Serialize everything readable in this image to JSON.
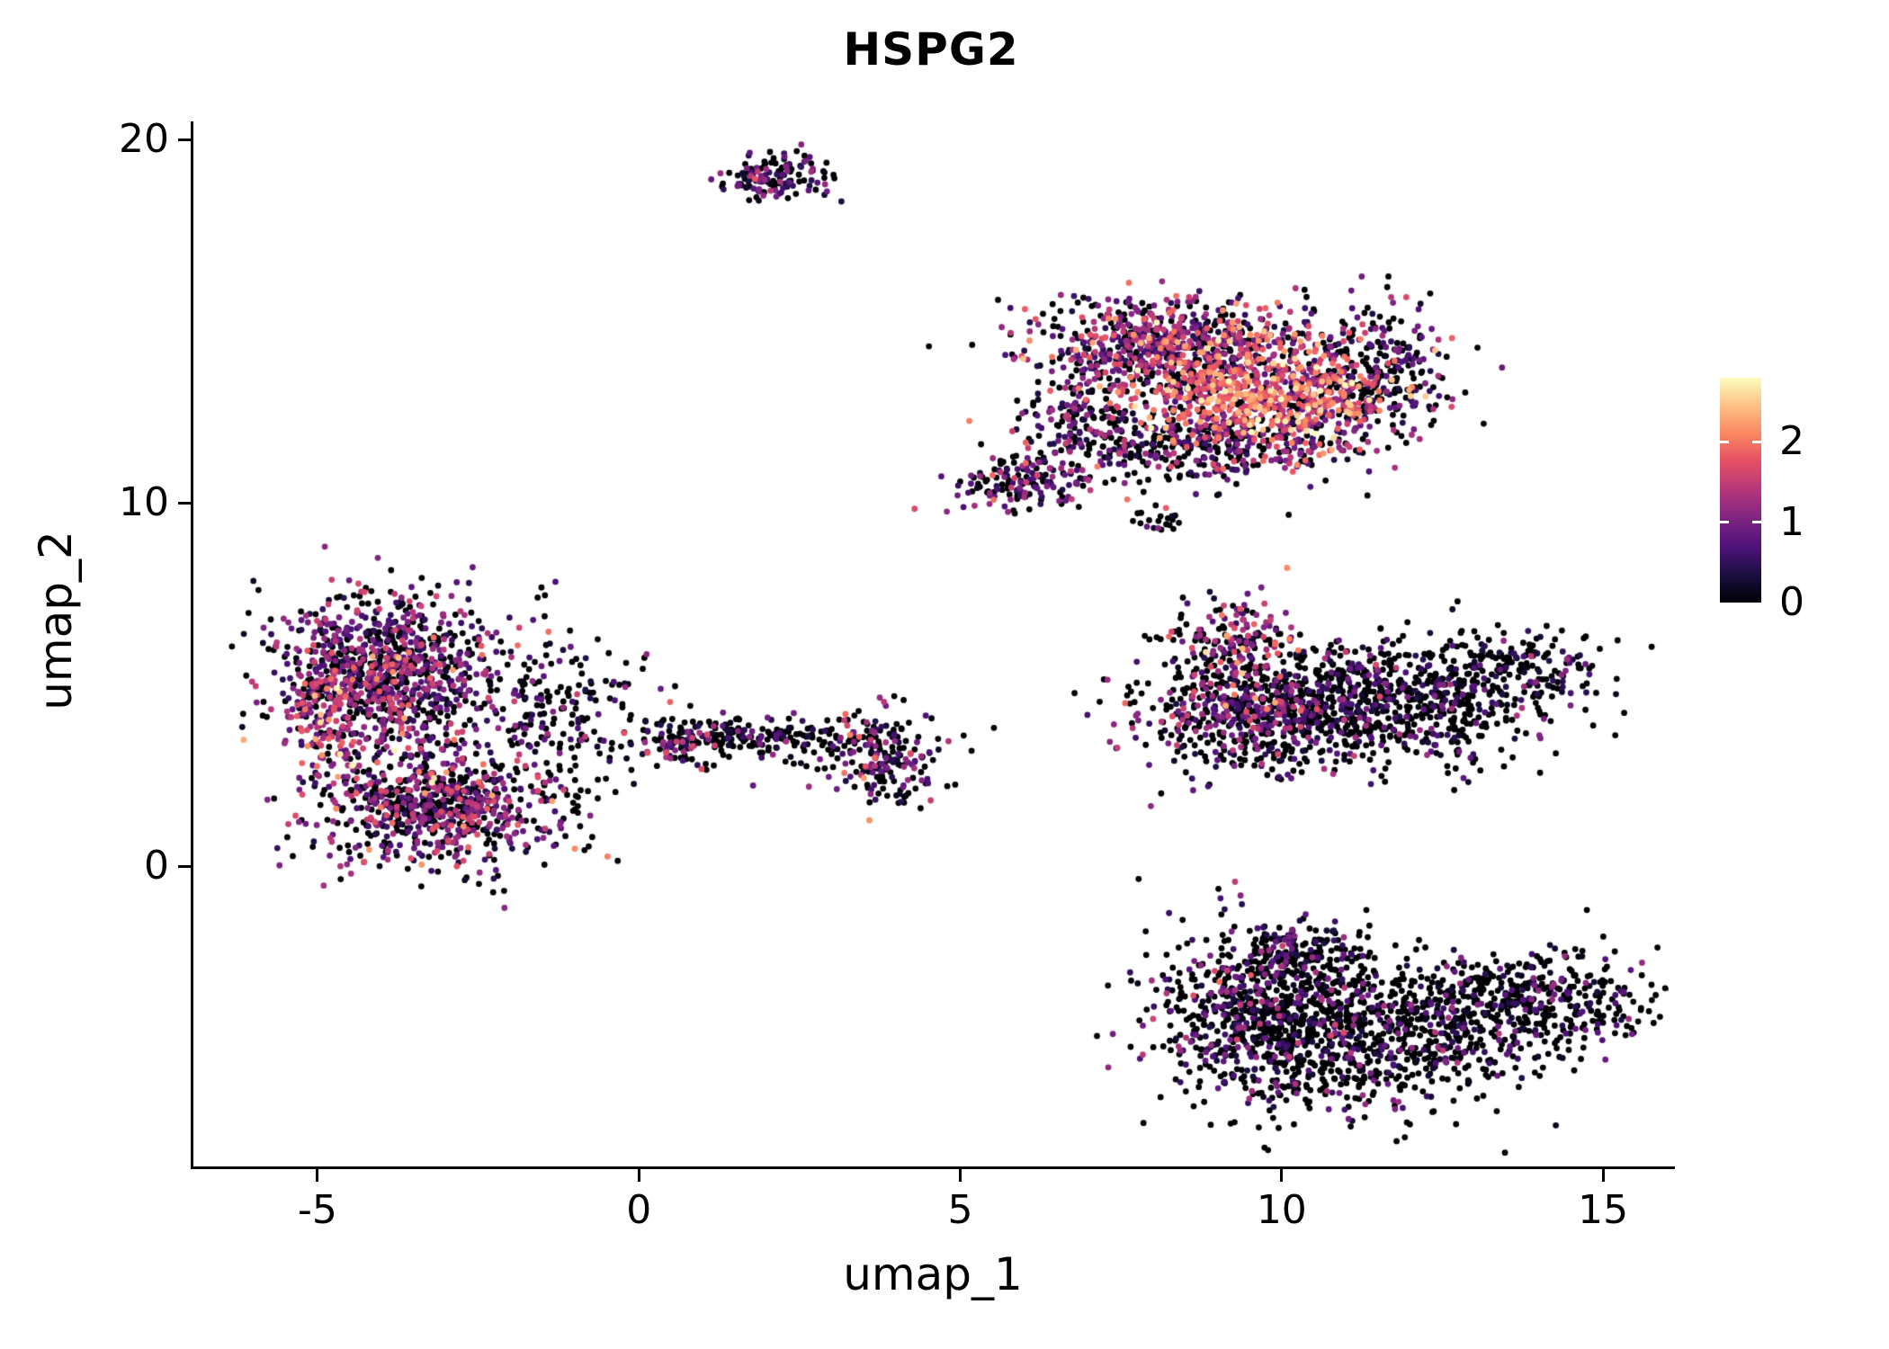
{
  "chart_data": {
    "type": "scatter",
    "title": "HSPG2",
    "xlabel": "umap_1",
    "ylabel": "umap_2",
    "x_ticks": [
      -5,
      0,
      5,
      10,
      15
    ],
    "y_ticks": [
      0,
      10,
      20
    ],
    "xlim": [
      -6.93,
      16.02
    ],
    "ylim": [
      -8.26,
      20.5
    ],
    "grid": false,
    "legend_position": "right",
    "legend": {
      "ticks": [
        0,
        1,
        2
      ],
      "vmin": 0,
      "vmax": 2.8
    },
    "colormap": {
      "name": "magma",
      "stops": [
        {
          "t": 0.0,
          "color": [
            0,
            0,
            4
          ]
        },
        {
          "t": 0.13,
          "color": [
            28,
            16,
            68
          ]
        },
        {
          "t": 0.25,
          "color": [
            79,
            18,
            123
          ]
        },
        {
          "t": 0.38,
          "color": [
            129,
            37,
            129
          ]
        },
        {
          "t": 0.5,
          "color": [
            181,
            54,
            122
          ]
        },
        {
          "t": 0.63,
          "color": [
            229,
            80,
            100
          ]
        },
        {
          "t": 0.75,
          "color": [
            251,
            135,
            97
          ]
        },
        {
          "t": 0.88,
          "color": [
            254,
            194,
            135
          ]
        },
        {
          "t": 1.0,
          "color": [
            252,
            253,
            191
          ]
        }
      ]
    },
    "point_radius": 3.4,
    "seed": 42,
    "clusters": [
      {
        "name": "top-small",
        "cx": 2.05,
        "cy": 19.0,
        "sdx": 0.42,
        "sdy": 0.3,
        "n": 140,
        "expr_mean": 0.7,
        "expr_sd": 0.45,
        "zero_frac": 0.4
      },
      {
        "name": "upper-right-a",
        "cx": 8.2,
        "cy": 14.3,
        "sdx": 1.05,
        "sdy": 0.65,
        "n": 700,
        "expr_mean": 1.0,
        "expr_sd": 0.6,
        "zero_frac": 0.3
      },
      {
        "name": "upper-right-hotspot",
        "cx": 9.8,
        "cy": 13.0,
        "sdx": 1.0,
        "sdy": 0.75,
        "n": 750,
        "expr_mean": 1.7,
        "expr_sd": 0.55,
        "zero_frac": 0.12
      },
      {
        "name": "upper-right-b",
        "cx": 8.7,
        "cy": 11.7,
        "sdx": 1.3,
        "sdy": 0.6,
        "n": 450,
        "expr_mean": 0.8,
        "expr_sd": 0.55,
        "zero_frac": 0.45
      },
      {
        "name": "upper-right-east",
        "cx": 11.4,
        "cy": 13.6,
        "sdx": 0.6,
        "sdy": 0.9,
        "n": 280,
        "expr_mean": 0.6,
        "expr_sd": 0.5,
        "zero_frac": 0.55
      },
      {
        "name": "upper-right-tail",
        "cx": 6.0,
        "cy": 10.6,
        "sdx": 0.55,
        "sdy": 0.35,
        "n": 150,
        "expr_mean": 0.8,
        "expr_sd": 0.5,
        "zero_frac": 0.4
      },
      {
        "name": "upper-right-spur",
        "cx": 6.8,
        "cy": 12.5,
        "sdx": 0.45,
        "sdy": 0.8,
        "n": 130,
        "expr_mean": 0.9,
        "expr_sd": 0.55,
        "zero_frac": 0.35
      },
      {
        "name": "mid-dot",
        "cx": 8.15,
        "cy": 9.5,
        "sdx": 0.16,
        "sdy": 0.18,
        "n": 20,
        "expr_mean": 0.6,
        "expr_sd": 0.5,
        "zero_frac": 0.5
      },
      {
        "name": "left-upper",
        "cx": -4.0,
        "cy": 5.4,
        "sdx": 0.85,
        "sdy": 1.05,
        "n": 950,
        "expr_mean": 0.95,
        "expr_sd": 0.55,
        "zero_frac": 0.33
      },
      {
        "name": "left-lower",
        "cx": -3.1,
        "cy": 1.6,
        "sdx": 0.95,
        "sdy": 0.8,
        "n": 750,
        "expr_mean": 0.9,
        "expr_sd": 0.55,
        "zero_frac": 0.38
      },
      {
        "name": "left-fringe",
        "cx": -1.5,
        "cy": 4.3,
        "sdx": 0.85,
        "sdy": 1.3,
        "n": 230,
        "expr_mean": 0.55,
        "expr_sd": 0.5,
        "zero_frac": 0.55
      },
      {
        "name": "left-edge",
        "cx": -4.85,
        "cy": 4.0,
        "sdx": 0.3,
        "sdy": 1.0,
        "n": 140,
        "expr_mean": 1.35,
        "expr_sd": 0.6,
        "zero_frac": 0.18
      },
      {
        "name": "mid-strip",
        "cx": 1.55,
        "cy": 3.55,
        "sdx": 0.8,
        "sdy": 0.22,
        "n": 170,
        "expr_mean": 0.5,
        "expr_sd": 0.4,
        "zero_frac": 0.65
      },
      {
        "name": "mid-strip-west",
        "cx": 0.6,
        "cy": 3.4,
        "sdx": 0.35,
        "sdy": 0.3,
        "n": 60,
        "expr_mean": 0.9,
        "expr_sd": 0.5,
        "zero_frac": 0.4
      },
      {
        "name": "mid-small",
        "cx": 3.8,
        "cy": 3.0,
        "sdx": 0.38,
        "sdy": 0.65,
        "n": 170,
        "expr_mean": 1.0,
        "expr_sd": 0.65,
        "zero_frac": 0.35
      },
      {
        "name": "scatter-sparse",
        "cx": 2.6,
        "cy": 3.3,
        "sdx": 1.2,
        "sdy": 0.5,
        "n": 60,
        "expr_mean": 0.6,
        "expr_sd": 0.5,
        "zero_frac": 0.55
      },
      {
        "name": "right-mid-west",
        "cx": 9.6,
        "cy": 4.3,
        "sdx": 0.95,
        "sdy": 0.8,
        "n": 620,
        "expr_mean": 0.75,
        "expr_sd": 0.55,
        "zero_frac": 0.5
      },
      {
        "name": "right-mid-east",
        "cx": 11.7,
        "cy": 4.6,
        "sdx": 1.3,
        "sdy": 0.85,
        "n": 720,
        "expr_mean": 0.5,
        "expr_sd": 0.45,
        "zero_frac": 0.68
      },
      {
        "name": "right-mid-spur",
        "cx": 9.3,
        "cy": 6.3,
        "sdx": 0.5,
        "sdy": 0.55,
        "n": 150,
        "expr_mean": 1.15,
        "expr_sd": 0.6,
        "zero_frac": 0.3
      },
      {
        "name": "right-mid-tip",
        "cx": 13.8,
        "cy": 5.5,
        "sdx": 0.7,
        "sdy": 0.5,
        "n": 130,
        "expr_mean": 0.45,
        "expr_sd": 0.4,
        "zero_frac": 0.65
      },
      {
        "name": "bottom-west",
        "cx": 9.6,
        "cy": -4.0,
        "sdx": 0.85,
        "sdy": 1.15,
        "n": 620,
        "expr_mean": 0.6,
        "expr_sd": 0.5,
        "zero_frac": 0.6
      },
      {
        "name": "bottom-mid",
        "cx": 11.3,
        "cy": -4.8,
        "sdx": 1.2,
        "sdy": 1.0,
        "n": 700,
        "expr_mean": 0.45,
        "expr_sd": 0.45,
        "zero_frac": 0.68
      },
      {
        "name": "bottom-east",
        "cx": 13.8,
        "cy": -3.7,
        "sdx": 1.0,
        "sdy": 0.75,
        "n": 480,
        "expr_mean": 0.5,
        "expr_sd": 0.45,
        "zero_frac": 0.65
      },
      {
        "name": "bottom-spur",
        "cx": 10.3,
        "cy": -2.3,
        "sdx": 0.5,
        "sdy": 0.4,
        "n": 140,
        "expr_mean": 0.55,
        "expr_sd": 0.45,
        "zero_frac": 0.6
      }
    ]
  },
  "style": {
    "background": "#ffffff",
    "axis_color": "#000000",
    "text_color": "#000000",
    "colorbar_tick_color": "#ffffff"
  }
}
